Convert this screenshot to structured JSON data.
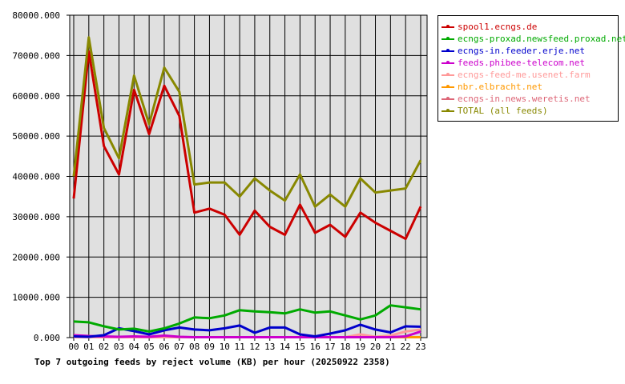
{
  "chart_data": {
    "type": "line",
    "title": "Top 7 outgoing feeds by reject volume (KB) per hour (20250922 2358)",
    "xlabel": "",
    "ylabel": "",
    "ylim": [
      0,
      80000
    ],
    "yticks": [
      "0.000",
      "10000.000",
      "20000.000",
      "30000.000",
      "40000.000",
      "50000.000",
      "60000.000",
      "70000.000",
      "80000.000"
    ],
    "x": [
      "00",
      "01",
      "02",
      "03",
      "04",
      "05",
      "06",
      "07",
      "08",
      "09",
      "10",
      "11",
      "12",
      "13",
      "14",
      "15",
      "16",
      "17",
      "18",
      "19",
      "20",
      "21",
      "22",
      "23"
    ],
    "grid": true,
    "legend_position": "right",
    "series": [
      {
        "name": "spool1.ecngs.de",
        "color": "#cc0000",
        "values": [
          34500,
          71000,
          47500,
          40500,
          61500,
          50500,
          62500,
          55000,
          31000,
          32000,
          30500,
          25500,
          31500,
          27500,
          25500,
          33000,
          26000,
          28000,
          25000,
          31000,
          28500,
          26500,
          24500,
          32500
        ]
      },
      {
        "name": "ecngs-proxad.newsfeed.proxad.net",
        "color": "#00aa00",
        "values": [
          4000,
          3800,
          2800,
          2000,
          2200,
          1500,
          2300,
          3500,
          5000,
          4800,
          5500,
          6800,
          6500,
          6300,
          6000,
          7000,
          6200,
          6500,
          5500,
          4500,
          5500,
          8000,
          7500,
          7000
        ]
      },
      {
        "name": "ecngs-in.feeder.erje.net",
        "color": "#0000cc",
        "values": [
          300,
          200,
          600,
          2300,
          1600,
          800,
          1800,
          2500,
          2000,
          1800,
          2300,
          3000,
          1200,
          2500,
          2500,
          800,
          300,
          1000,
          1800,
          3200,
          2000,
          1300,
          2800,
          2700
        ]
      },
      {
        "name": "feeds.phibee-telecom.net",
        "color": "#cc00cc",
        "values": [
          600,
          400,
          300,
          200,
          300,
          200,
          500,
          200,
          100,
          100,
          100,
          100,
          100,
          100,
          100,
          100,
          100,
          100,
          100,
          100,
          100,
          100,
          300,
          1500
        ]
      },
      {
        "name": "ecngs-feed-me.usenet.farm",
        "color": "#ff9999",
        "values": [
          100,
          100,
          100,
          100,
          100,
          100,
          100,
          100,
          100,
          100,
          100,
          100,
          100,
          100,
          100,
          100,
          100,
          100,
          100,
          800,
          200,
          500,
          1500,
          2000
        ]
      },
      {
        "name": "nbr.elbracht.net",
        "color": "#ff9900",
        "values": [
          100,
          100,
          100,
          100,
          100,
          100,
          100,
          100,
          100,
          100,
          100,
          100,
          100,
          100,
          100,
          100,
          100,
          100,
          100,
          100,
          100,
          100,
          100,
          100
        ]
      },
      {
        "name": "ecngs-in.news.weretis.net",
        "color": "#dd6677",
        "values": [
          100,
          100,
          100,
          100,
          100,
          100,
          100,
          100,
          100,
          100,
          100,
          100,
          100,
          100,
          100,
          100,
          100,
          100,
          100,
          100,
          100,
          100,
          100,
          100
        ]
      },
      {
        "name": "TOTAL (all feeds)",
        "color": "#888800",
        "values": [
          40000,
          74500,
          52000,
          44500,
          65000,
          53000,
          67000,
          61000,
          38000,
          38500,
          38500,
          35000,
          39500,
          36500,
          34000,
          40500,
          32500,
          35500,
          32500,
          39500,
          36000,
          36500,
          37000,
          44000
        ]
      }
    ]
  }
}
